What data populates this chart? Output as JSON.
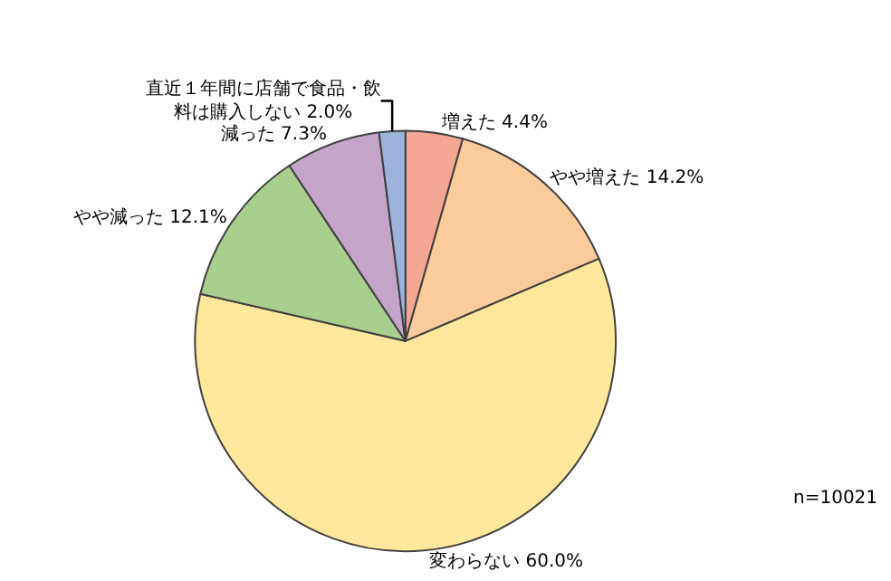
{
  "chart_data": {
    "type": "pie",
    "categories": [
      "増えた",
      "やや増えた",
      "変わらない",
      "やや減った",
      "減った",
      "直近１年間に店舗で食品・飲料は購入しない"
    ],
    "values": [
      4.4,
      14.2,
      60.0,
      12.1,
      7.3,
      2.0
    ],
    "value_labels": [
      "4.4%",
      "14.2%",
      "60.0%",
      "12.1%",
      "7.3%",
      "2.0%"
    ],
    "colors": [
      "#f4a793",
      "#fccb9c",
      "#ffe79b",
      "#a8cf8e",
      "#c4a5c9",
      "#9db3dc"
    ],
    "annotations": [
      "n=10021"
    ],
    "legend": false
  }
}
